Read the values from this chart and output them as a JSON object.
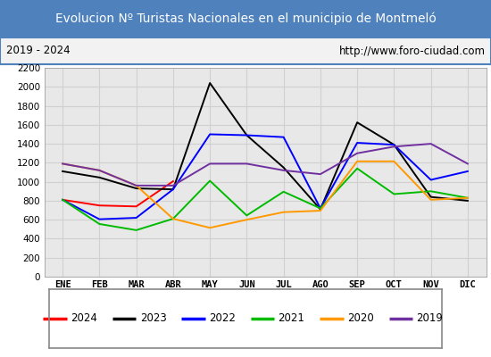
{
  "title": "Evolucion Nº Turistas Nacionales en el municipio de Montmeló",
  "subtitle_left": "2019 - 2024",
  "subtitle_right": "http://www.foro-ciudad.com",
  "title_bg_color": "#4f81bd",
  "title_text_color": "#ffffff",
  "months": [
    "ENE",
    "FEB",
    "MAR",
    "ABR",
    "MAY",
    "JUN",
    "JUL",
    "AGO",
    "SEP",
    "OCT",
    "NOV",
    "DIC"
  ],
  "ylim": [
    0,
    2200
  ],
  "yticks": [
    0,
    200,
    400,
    600,
    800,
    1000,
    1200,
    1400,
    1600,
    1800,
    2000,
    2200
  ],
  "series": {
    "2024": {
      "color": "#ff0000",
      "data": [
        810,
        750,
        740,
        1005,
        null,
        null,
        null,
        null,
        null,
        null,
        null,
        null
      ]
    },
    "2023": {
      "color": "#000000",
      "data": [
        1110,
        1045,
        930,
        920,
        2040,
        1490,
        1150,
        710,
        1625,
        1390,
        840,
        800
      ]
    },
    "2022": {
      "color": "#0000ff",
      "data": [
        810,
        605,
        620,
        920,
        1500,
        1490,
        1470,
        720,
        1410,
        1390,
        1020,
        1110
      ]
    },
    "2021": {
      "color": "#00bb00",
      "data": [
        810,
        555,
        490,
        610,
        1010,
        645,
        895,
        720,
        1140,
        870,
        900,
        830
      ]
    },
    "2020": {
      "color": "#ff9900",
      "data": [
        1190,
        1120,
        960,
        610,
        515,
        600,
        680,
        695,
        1215,
        1215,
        810,
        830
      ]
    },
    "2019": {
      "color": "#7030a0",
      "data": [
        1190,
        1120,
        960,
        960,
        1190,
        1190,
        1120,
        1080,
        1300,
        1370,
        1400,
        1190
      ]
    }
  },
  "legend_order": [
    "2024",
    "2023",
    "2022",
    "2021",
    "2020",
    "2019"
  ],
  "grid_color": "#d0d0d0",
  "plot_bg_color": "#e8e8e8",
  "border_color": "#4f81bd"
}
